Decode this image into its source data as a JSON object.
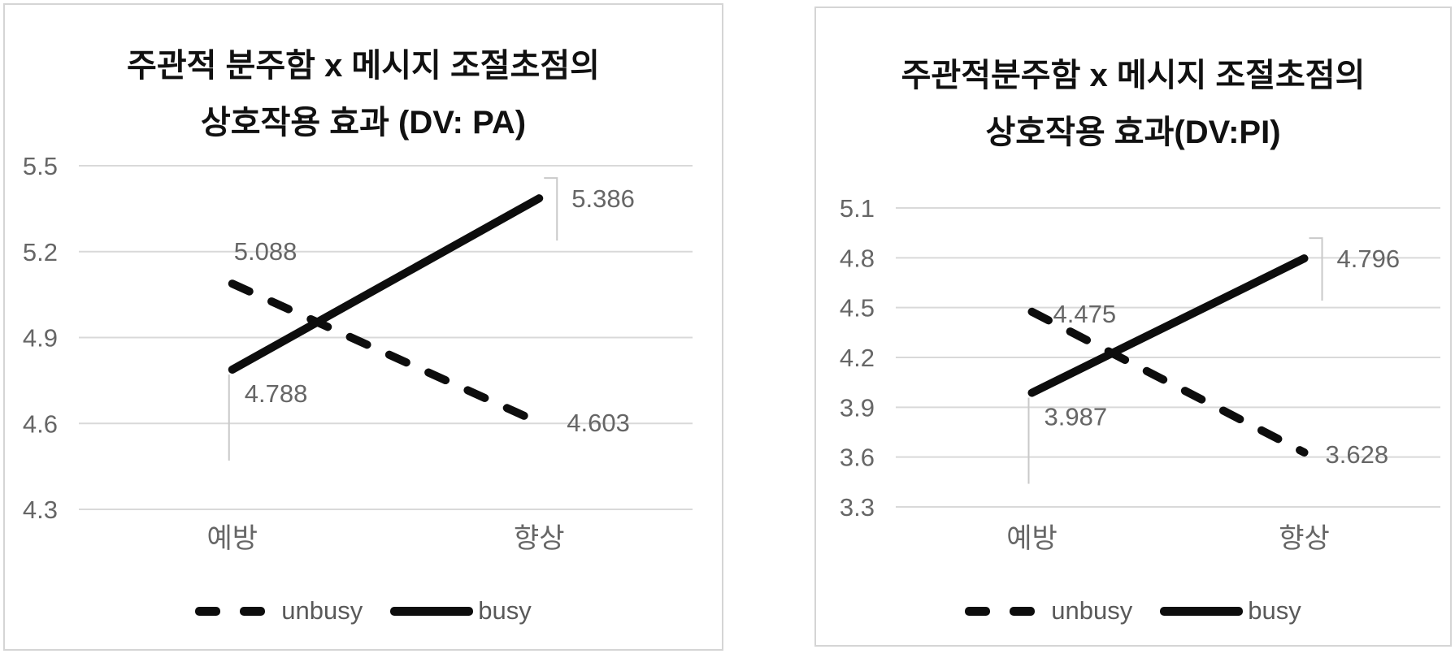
{
  "colors": {
    "series_line": "#0d0d0d",
    "gridline": "#d9d9d9",
    "axis_label": "#666666",
    "data_label": "#666666",
    "leader_line": "#c9c9c9",
    "panel_border": "#d5d5d5",
    "title": "#111111",
    "legend_text": "#595959",
    "background": "#ffffff"
  },
  "chart_data": [
    {
      "type": "line",
      "title": "주관적 분주함 x 메시지 조절초점의 상호작용 효과 (DV: PA)",
      "title_lines": [
        "주관적 분주함 x 메시지 조절초점의",
        "상호작용 효과 (DV: PA)"
      ],
      "categories": [
        "예방",
        "향상"
      ],
      "series": [
        {
          "name": "unbusy",
          "style": "dashed",
          "values": [
            5.088,
            4.603
          ],
          "labels": [
            "5.088",
            "4.603"
          ],
          "label_positions": [
            "above-right",
            "right"
          ]
        },
        {
          "name": "busy",
          "style": "solid",
          "values": [
            4.788,
            5.386
          ],
          "labels": [
            "4.788",
            "5.386"
          ],
          "label_positions": [
            "below-leader",
            "right-leader"
          ]
        }
      ],
      "yticks": [
        4.3,
        4.6,
        4.9,
        5.2,
        5.5
      ],
      "ytick_labels": [
        "4.3",
        "4.6",
        "4.9",
        "5.2",
        "5.5"
      ],
      "ylim": [
        4.3,
        5.5
      ],
      "grid": true,
      "legend_position": "bottom"
    },
    {
      "type": "line",
      "title": "주관적분주함 x 메시지 조절초점의 상호작용 효과(DV:PI)",
      "title_lines": [
        "주관적분주함 x 메시지 조절초점의",
        "상호작용 효과(DV:PI)"
      ],
      "categories": [
        "예방",
        "향상"
      ],
      "series": [
        {
          "name": "unbusy",
          "style": "dashed",
          "values": [
            4.475,
            3.628
          ],
          "labels": [
            "4.475",
            "3.628"
          ],
          "label_positions": [
            "right-close",
            "right-close"
          ]
        },
        {
          "name": "busy",
          "style": "solid",
          "values": [
            3.987,
            4.796
          ],
          "labels": [
            "3.987",
            "4.796"
          ],
          "label_positions": [
            "below-leader",
            "right-leader"
          ]
        }
      ],
      "yticks": [
        3.3,
        3.6,
        3.9,
        4.2,
        4.5,
        4.8,
        5.1
      ],
      "ytick_labels": [
        "3.3",
        "3.6",
        "3.9",
        "4.2",
        "4.5",
        "4.8",
        "5.1"
      ],
      "ylim": [
        3.3,
        5.1
      ],
      "grid": true,
      "legend_position": "bottom"
    }
  ]
}
